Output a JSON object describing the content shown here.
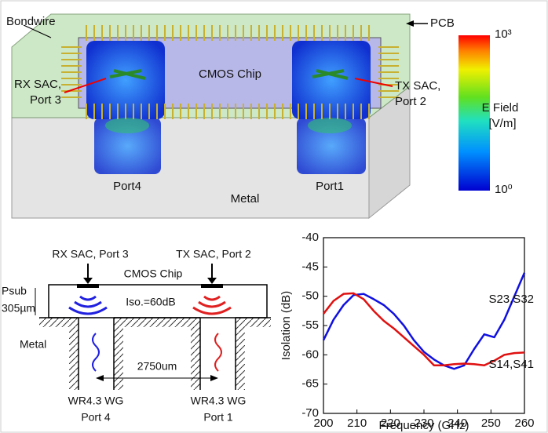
{
  "simulation": {
    "pcb": "PCB",
    "bondwire": "Bondwire",
    "chip": "CMOS Chip",
    "rx": [
      "RX SAC,",
      "Port 3"
    ],
    "tx": [
      "TX SAC,",
      "Port 2"
    ],
    "port4": "Port4",
    "port1": "Port1",
    "metal": "Metal"
  },
  "colorbar": {
    "title": [
      "E Field",
      "[V/m]"
    ],
    "max": "10³",
    "min": "10⁰"
  },
  "cross_section": {
    "rx": "RX SAC, Port 3",
    "tx": "TX SAC, Port 2",
    "chip": "CMOS Chip",
    "psub": "Psub",
    "thickness": "305µm",
    "isolation": "Iso.=60dB",
    "metal": "Metal",
    "spacing": "2750um",
    "wg_left": "WR4.3 WG",
    "port_left": "Port 4",
    "wg_right": "WR4.3 WG",
    "port_right": "Port 1"
  },
  "chart_data": {
    "type": "line",
    "xlabel": "Frequency (GHz)",
    "ylabel": "Isolation (dB)",
    "x": [
      200,
      203,
      206,
      209,
      212,
      215,
      218,
      221,
      224,
      227,
      230,
      233,
      236,
      239,
      242,
      245,
      248,
      251,
      254,
      257,
      260
    ],
    "series": [
      {
        "name": "S23,S32",
        "color": "#1010e0",
        "values": [
          -57.5,
          -54,
          -51.5,
          -49.8,
          -49.6,
          -50.5,
          -51.5,
          -53,
          -55,
          -57.5,
          -59.5,
          -60.8,
          -61.8,
          -62.4,
          -61.8,
          -59,
          -56.5,
          -57,
          -54,
          -50,
          -46
        ]
      },
      {
        "name": "S14,S41",
        "color": "#e01010",
        "values": [
          -53,
          -50.8,
          -49.6,
          -49.5,
          -50.5,
          -52.5,
          -54.2,
          -55.5,
          -57,
          -58.5,
          -60,
          -61.8,
          -61.8,
          -61.6,
          -61.5,
          -61.6,
          -61.8,
          -61,
          -60,
          -59.7,
          -59.6
        ]
      }
    ],
    "xlim": [
      200,
      260
    ],
    "xticks": [
      200,
      210,
      220,
      230,
      240,
      250,
      260
    ],
    "ylim": [
      -70,
      -40
    ],
    "yticks": [
      -70,
      -65,
      -60,
      -55,
      -50,
      -45,
      -40
    ]
  }
}
